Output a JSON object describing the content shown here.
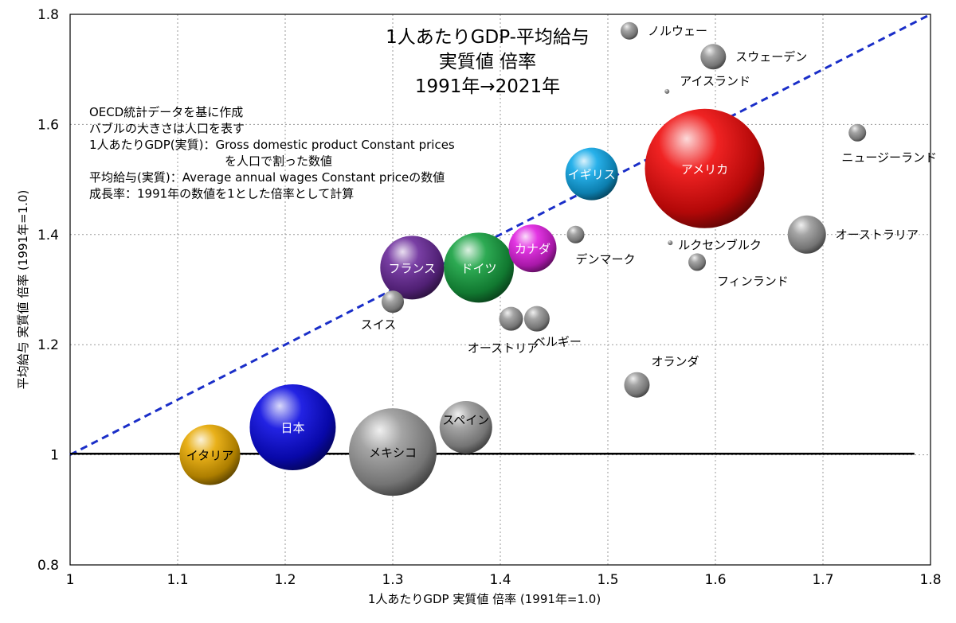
{
  "chart_data": {
    "type": "scatter",
    "title_lines": [
      "1人あたりGDP-平均給与",
      "実質値 倍率",
      "1991年→2021年"
    ],
    "xlabel": "1人あたりGDP 実質値 倍率 (1991年=1.0)",
    "ylabel": "平均給与 実質値 倍率 (1991年=1.0)",
    "xlim": [
      1,
      1.8
    ],
    "ylim": [
      0.8,
      1.8
    ],
    "xticks": [
      "1",
      "1.1",
      "1.2",
      "1.3",
      "1.4",
      "1.5",
      "1.6",
      "1.7",
      "1.8"
    ],
    "yticks": [
      "0.8",
      "1",
      "1.2",
      "1.4",
      "1.6",
      "1.8"
    ],
    "grid": true,
    "notes": [
      "OECD統計データを基に作成",
      "バブルの大きさは人口を表す",
      "1人あたりGDP(実質)：Gross domestic product Constant prices",
      "を人口で割った数値",
      "平均給与(実質)：Average annual wages Constant priceの数値",
      "成長率：1991年の数値を1とした倍率として計算"
    ],
    "points": [
      {
        "name": "イタリア",
        "x": 1.13,
        "y": 1.0,
        "r": 38,
        "color": "#e6a800",
        "label": "inside"
      },
      {
        "name": "日本",
        "x": 1.207,
        "y": 1.05,
        "r": 54,
        "color": "#0a0ae0",
        "label": "inside"
      },
      {
        "name": "メキシコ",
        "x": 1.3,
        "y": 1.005,
        "r": 55,
        "color": "#9a9a9a",
        "label": "inside"
      },
      {
        "name": "スペイン",
        "x": 1.368,
        "y": 1.05,
        "r": 33,
        "color": "#9a9a9a",
        "label": "inside"
      },
      {
        "name": "スイス",
        "x": 1.3,
        "y": 1.278,
        "r": 14,
        "color": "#9a9a9a",
        "label": "below-left"
      },
      {
        "name": "フランス",
        "x": 1.318,
        "y": 1.34,
        "r": 40,
        "color": "#6a2a9a",
        "label": "inside"
      },
      {
        "name": "ドイツ",
        "x": 1.38,
        "y": 1.34,
        "r": 44,
        "color": "#16a040",
        "label": "inside"
      },
      {
        "name": "オーストリア",
        "x": 1.41,
        "y": 1.247,
        "r": 15,
        "color": "#9a9a9a",
        "label": "below"
      },
      {
        "name": "ベルギー",
        "x": 1.434,
        "y": 1.247,
        "r": 16,
        "color": "#9a9a9a",
        "label": "below-right"
      },
      {
        "name": "カナダ",
        "x": 1.43,
        "y": 1.375,
        "r": 30,
        "color": "#e020e0",
        "label": "inside"
      },
      {
        "name": "デンマーク",
        "x": 1.47,
        "y": 1.4,
        "r": 11,
        "color": "#9a9a9a",
        "label": "below-right"
      },
      {
        "name": "イギリス",
        "x": 1.485,
        "y": 1.51,
        "r": 33,
        "color": "#10a8e8",
        "label": "inside"
      },
      {
        "name": "ノルウェー",
        "x": 1.52,
        "y": 1.77,
        "r": 11,
        "color": "#9a9a9a",
        "label": "right"
      },
      {
        "name": "オランダ",
        "x": 1.527,
        "y": 1.127,
        "r": 16,
        "color": "#9a9a9a",
        "label": "above-right"
      },
      {
        "name": "アイスランド",
        "x": 1.555,
        "y": 1.66,
        "r": 3,
        "color": "#9a9a9a",
        "label": "above-right"
      },
      {
        "name": "ルクセンブルク",
        "x": 1.558,
        "y": 1.385,
        "r": 3,
        "color": "#9a9a9a",
        "label": "right-below"
      },
      {
        "name": "アメリカ",
        "x": 1.59,
        "y": 1.52,
        "r": 75,
        "color": "#ee0a0a",
        "label": "inside"
      },
      {
        "name": "フィンランド",
        "x": 1.583,
        "y": 1.35,
        "r": 11,
        "color": "#9a9a9a",
        "label": "below-right"
      },
      {
        "name": "スウェーデン",
        "x": 1.598,
        "y": 1.723,
        "r": 16,
        "color": "#9a9a9a",
        "label": "right"
      },
      {
        "name": "オーストラリア",
        "x": 1.685,
        "y": 1.4,
        "r": 24,
        "color": "#9a9a9a",
        "label": "right"
      },
      {
        "name": "ニュージーランド",
        "x": 1.732,
        "y": 1.585,
        "r": 11,
        "color": "#9a9a9a",
        "label": "below"
      }
    ],
    "lines": [
      {
        "name": "diagonal",
        "from": [
          1,
          1
        ],
        "to": [
          1.8,
          1.8
        ],
        "style": "dashed",
        "color": "#1a2ec8"
      },
      {
        "name": "baseline",
        "from": [
          1,
          1.002
        ],
        "to": [
          1.785,
          1.002
        ],
        "style": "solid",
        "color": "#000000"
      }
    ]
  }
}
